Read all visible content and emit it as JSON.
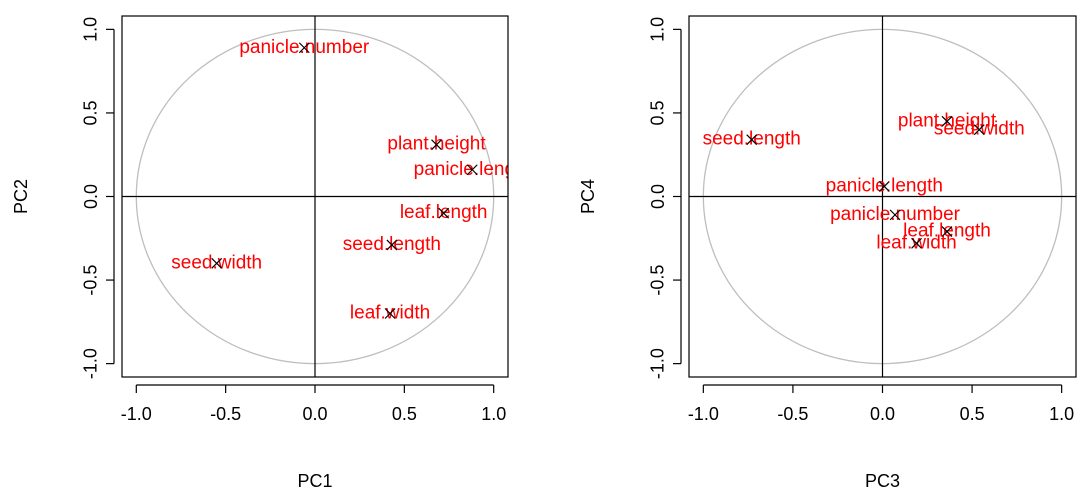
{
  "chart_data": [
    {
      "type": "scatter",
      "xlabel": "PC1",
      "ylabel": "PC2",
      "labels": [
        "panicle.number",
        "plant.height",
        "panicle.length",
        "leaf.length",
        "seed.length",
        "seed.width",
        "leaf.width"
      ],
      "x": [
        -0.06,
        0.68,
        0.88,
        0.72,
        0.43,
        -0.55,
        0.42
      ],
      "y": [
        0.89,
        0.31,
        0.16,
        -0.1,
        -0.29,
        -0.4,
        -0.7
      ],
      "xlim": [
        -1.08,
        1.08
      ],
      "ylim": [
        -1.08,
        1.08
      ],
      "xticks": [
        {
          "value": -1,
          "label": "-1.0"
        },
        -0.5,
        {
          "value": 0,
          "label": "0.0"
        },
        0.5,
        {
          "value": 1,
          "label": "1.0"
        }
      ],
      "yticks": [
        {
          "value": -1,
          "label": "-1.0"
        },
        -0.5,
        {
          "value": 0,
          "label": "0.0"
        },
        0.5,
        {
          "value": 1,
          "label": "1.0"
        }
      ],
      "marker_color": "#000000",
      "label_color": "#ff0000",
      "circle_color": "#bebebe"
    },
    {
      "type": "scatter",
      "xlabel": "PC3",
      "ylabel": "PC4",
      "labels": [
        "seed.length",
        "plant.height",
        "seed.width",
        "panicle.length",
        "panicle.number",
        "leaf.length",
        "leaf.width"
      ],
      "x": [
        -0.73,
        0.36,
        0.54,
        0.01,
        0.07,
        0.36,
        0.19
      ],
      "y": [
        0.34,
        0.45,
        0.4,
        0.06,
        -0.11,
        -0.21,
        -0.28
      ],
      "xlim": [
        -1.08,
        1.08
      ],
      "ylim": [
        -1.08,
        1.08
      ],
      "xticks": [
        {
          "value": -1,
          "label": "-1.0"
        },
        -0.5,
        {
          "value": 0,
          "label": "0.0"
        },
        0.5,
        {
          "value": 1,
          "label": "1.0"
        }
      ],
      "yticks": [
        {
          "value": -1,
          "label": "-1.0"
        },
        -0.5,
        {
          "value": 0,
          "label": "0.0"
        },
        0.5,
        {
          "value": 1,
          "label": "1.0"
        }
      ],
      "marker_color": "#000000",
      "label_color": "#ff0000",
      "circle_color": "#bebebe"
    }
  ]
}
